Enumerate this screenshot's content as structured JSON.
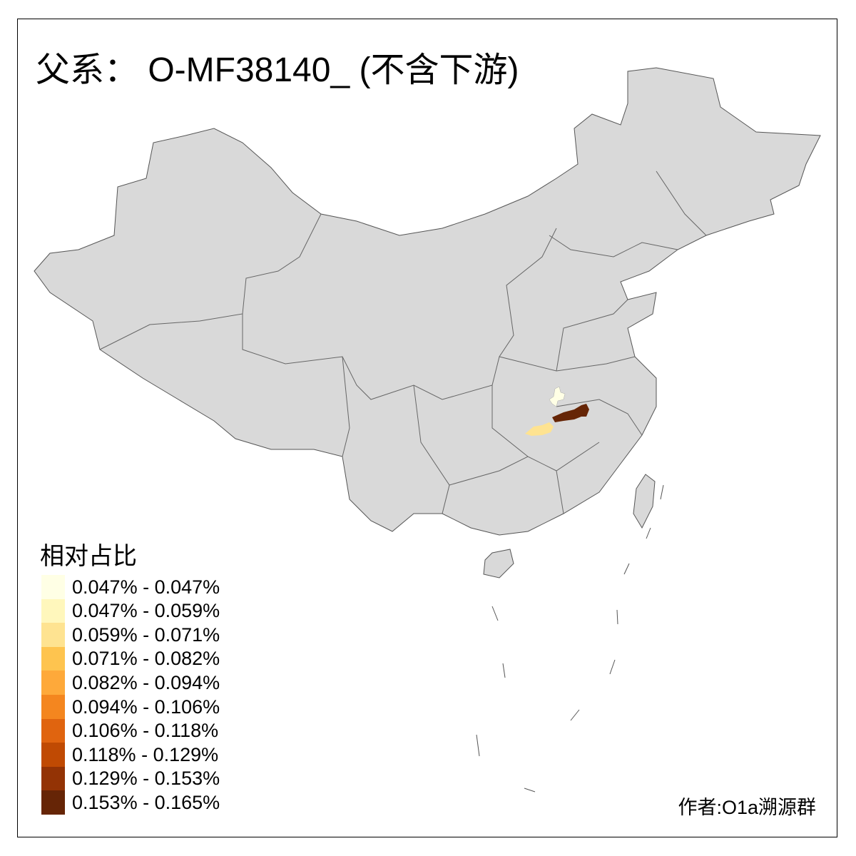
{
  "title": "父系： O-MF38140_ (不含下游)",
  "legend": {
    "title": "相对占比",
    "items": [
      {
        "label": "0.047% - 0.047%",
        "color": "#FFFFE5"
      },
      {
        "label": "0.047% - 0.059%",
        "color": "#FFF7BC"
      },
      {
        "label": "0.059% - 0.071%",
        "color": "#FEE391"
      },
      {
        "label": "0.071% - 0.082%",
        "color": "#FEC44F"
      },
      {
        "label": "0.082% - 0.094%",
        "color": "#FEA93A"
      },
      {
        "label": "0.094% - 0.106%",
        "color": "#F4861F"
      },
      {
        "label": "0.106% - 0.118%",
        "color": "#E0640F"
      },
      {
        "label": "0.118% - 0.129%",
        "color": "#C04A03"
      },
      {
        "label": "0.129% - 0.153%",
        "color": "#933305"
      },
      {
        "label": "0.153% - 0.165%",
        "color": "#662506"
      }
    ]
  },
  "map": {
    "base_color": "#D9D9D9",
    "border_color": "#555555",
    "highlighted_regions": [
      {
        "level": "0.047% - 0.047%",
        "color": "#FFFFE5"
      },
      {
        "level": "0.059% - 0.071%",
        "color": "#FEE391"
      },
      {
        "level": "0.153% - 0.165%",
        "color": "#662506"
      }
    ]
  },
  "author": "作者:O1a溯源群"
}
